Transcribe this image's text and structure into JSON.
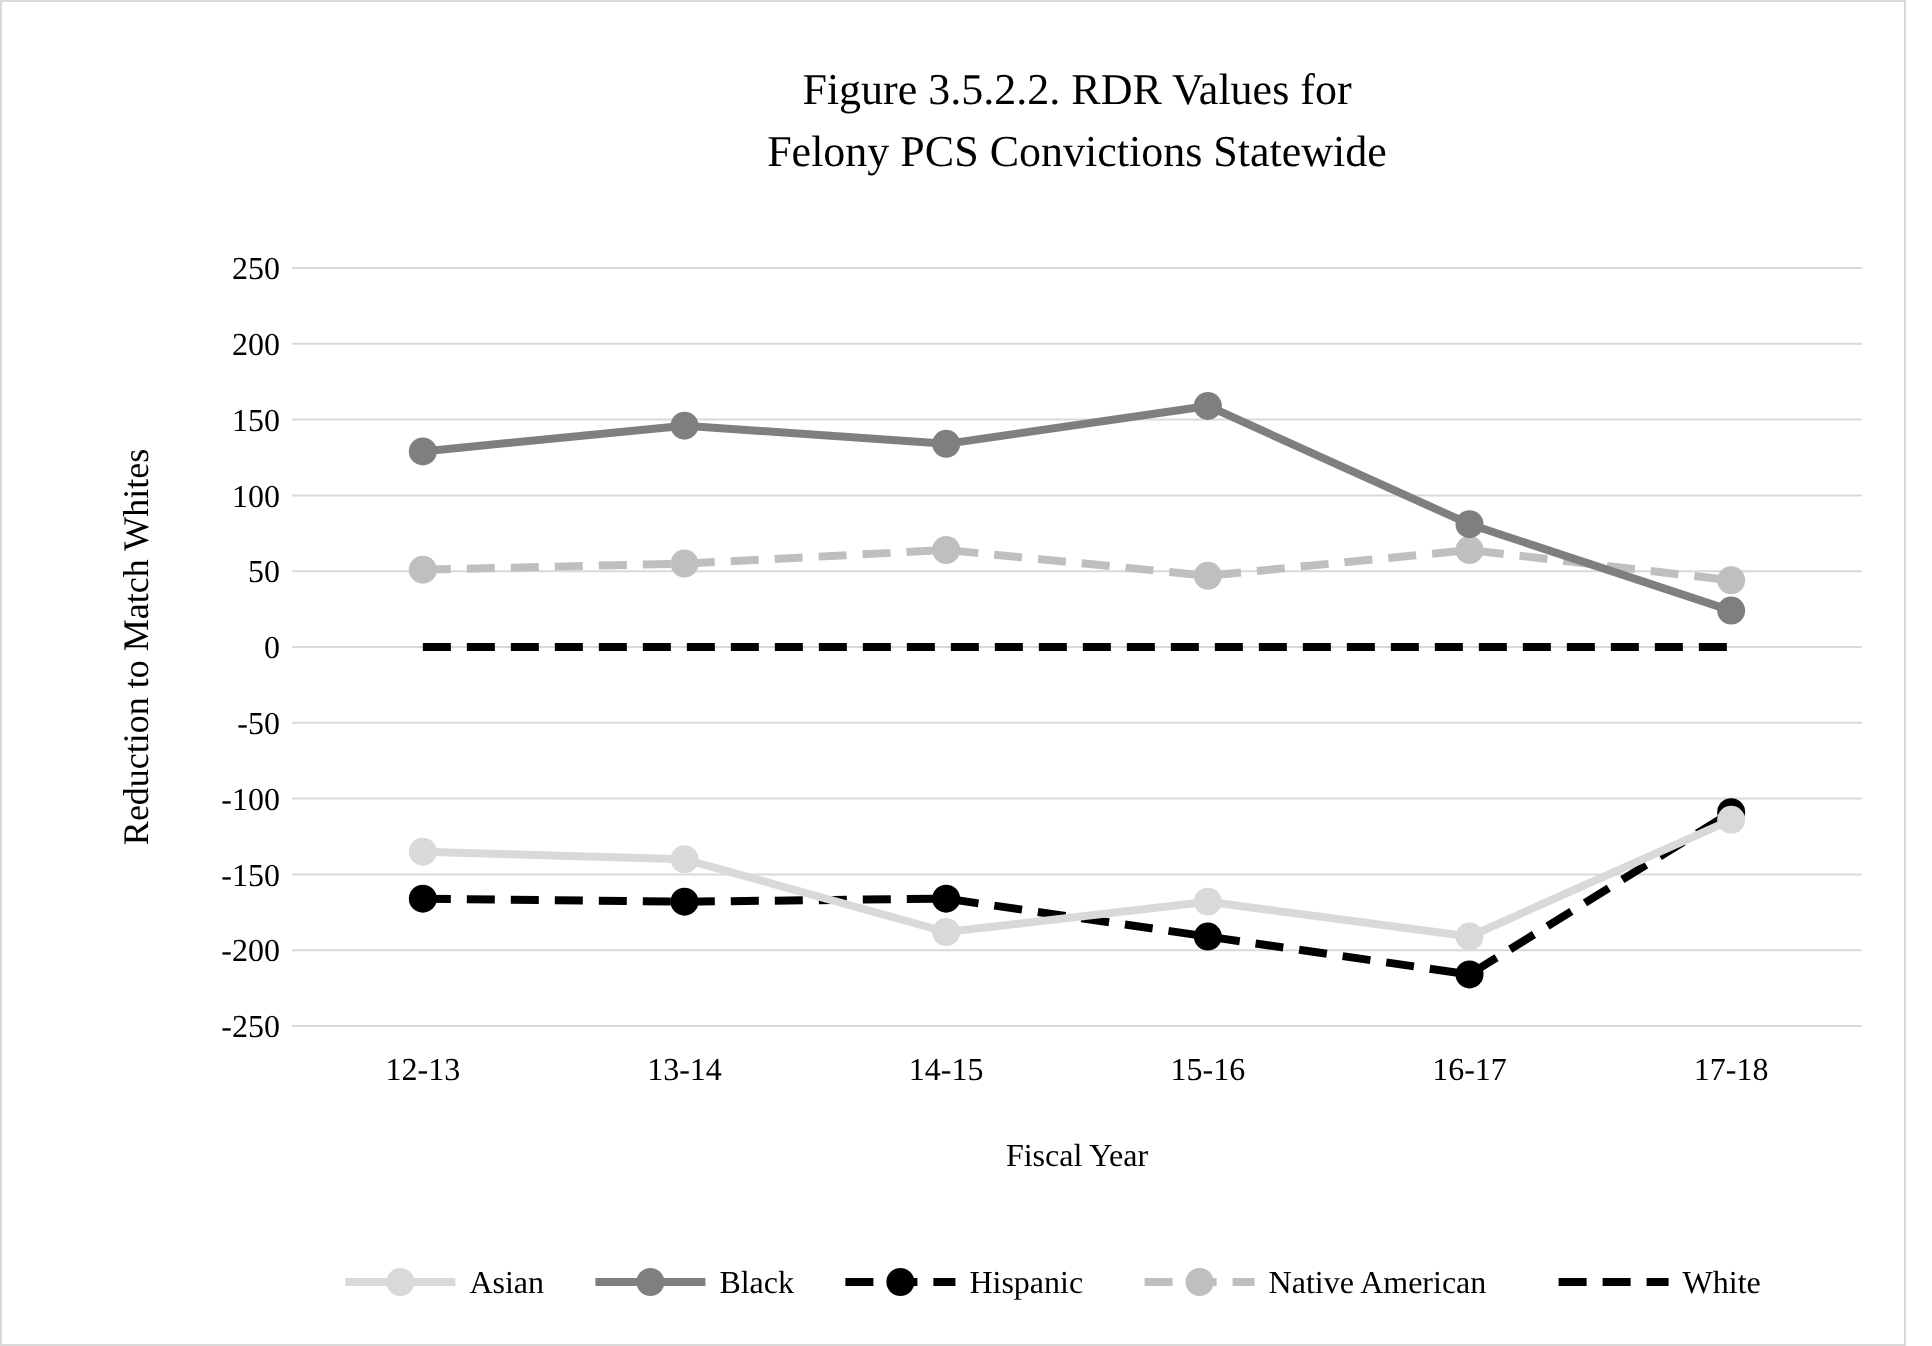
{
  "chart_data": {
    "type": "line",
    "title": "Figure 3.5.2.2. RDR Values for\nFelony PCS Convictions Statewide",
    "xlabel": "Fiscal Year",
    "ylabel": "Reduction to Match Whites",
    "categories": [
      "12-13",
      "13-14",
      "14-15",
      "15-16",
      "16-17",
      "17-18"
    ],
    "ylim": [
      -250,
      250
    ],
    "yticks": [
      -250,
      -200,
      -150,
      -100,
      -50,
      0,
      50,
      100,
      150,
      200,
      250
    ],
    "grid": "y",
    "legend": "bottom",
    "marker": "circle",
    "series": [
      {
        "name": "Asian",
        "color": "#d9d9d9",
        "line_style": "solid",
        "values": [
          -135,
          -140,
          -188,
          -168,
          -191,
          -114
        ]
      },
      {
        "name": "Black",
        "color": "#7f7f7f",
        "line_style": "solid",
        "values": [
          129,
          146,
          134,
          159,
          81,
          24
        ]
      },
      {
        "name": "Hispanic",
        "color": "#000000",
        "line_style": "dashed",
        "values": [
          -166,
          -168,
          -166,
          -191,
          -216,
          -109
        ]
      },
      {
        "name": "Native American",
        "color": "#bfbfbf",
        "line_style": "dashed",
        "values": [
          51,
          55,
          64,
          47,
          64,
          44
        ]
      },
      {
        "name": "White",
        "color": "#000000",
        "line_style": "dashed",
        "marker": "none",
        "values": [
          0,
          0,
          0,
          0,
          0,
          0
        ]
      }
    ]
  }
}
